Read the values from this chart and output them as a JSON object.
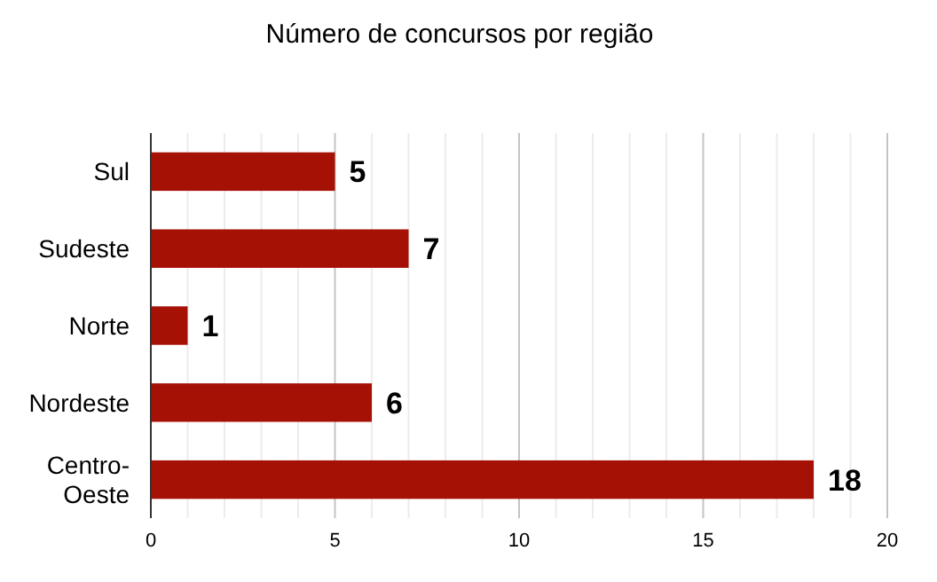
{
  "chart_data": {
    "type": "bar",
    "title": "Número de concursos por região",
    "orientation": "horizontal",
    "categories": [
      "Sul",
      "Sudeste",
      "Norte",
      "Nordeste",
      "Centro-Oeste"
    ],
    "values": [
      5,
      7,
      1,
      6,
      18
    ],
    "color": "#a61106",
    "data_labels": true,
    "grid": "x",
    "xlim": [
      0,
      20
    ],
    "xticks": [
      0,
      {
        "value": 1,
        "label": null
      },
      {
        "value": 2,
        "label": null
      },
      {
        "value": 3,
        "label": null
      },
      {
        "value": 4,
        "label": null
      },
      5,
      {
        "value": 6,
        "label": null
      },
      {
        "value": 7,
        "label": null
      },
      {
        "value": 8,
        "label": null
      },
      {
        "value": 9,
        "label": null
      },
      10,
      {
        "value": 11,
        "label": null
      },
      {
        "value": 12,
        "label": null
      },
      {
        "value": 13,
        "label": null
      },
      {
        "value": 14,
        "label": null
      },
      15,
      {
        "value": 16,
        "label": null
      },
      {
        "value": 17,
        "label": null
      },
      {
        "value": 18,
        "label": null
      },
      {
        "value": 19,
        "label": null
      },
      20
    ]
  }
}
